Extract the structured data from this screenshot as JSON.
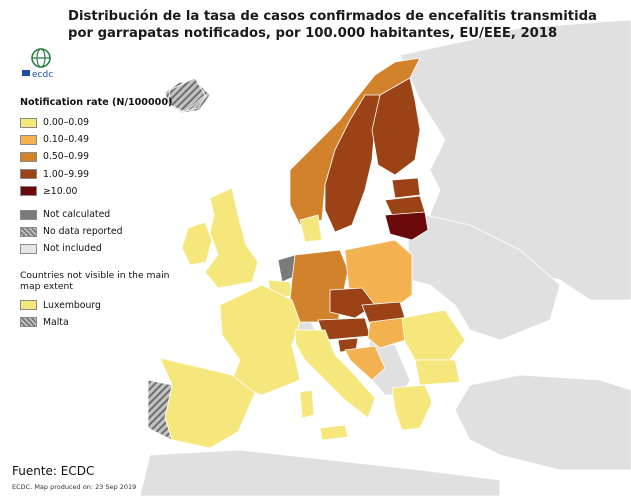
{
  "title": "Distribución de la tasa de casos confirmados de encefalitis transmitida por garrapatas notificados, por 100.000 habitantes, EU/EEE, 2018",
  "logo": {
    "text": "ecdc",
    "icon": "ecdc-globe-icon"
  },
  "legend": {
    "title": "Notification rate (N/100000)",
    "classes": [
      {
        "label": "0.00–0.09",
        "color": "#f5e77c"
      },
      {
        "label": "0.10–0.49",
        "color": "#f3b24f"
      },
      {
        "label": "0.50–0.99",
        "color": "#d1822b"
      },
      {
        "label": "1.00–9.99",
        "color": "#9b4216"
      },
      {
        "label": "≥10.00",
        "color": "#6a0a0a"
      }
    ],
    "other": [
      {
        "label": "Not calculated",
        "color": "#7a7a7a"
      },
      {
        "label": "No data reported",
        "color": "hatch"
      },
      {
        "label": "Not included",
        "color": "#e6e6e6"
      }
    ],
    "note": "Countries not visible in the main map extent",
    "small_countries": [
      {
        "label": "Luxembourg",
        "color": "#f5e77c"
      },
      {
        "label": "Malta",
        "color": "hatch"
      }
    ]
  },
  "source": "Fuente: ECDC",
  "produced": "ECDC. Map produced on: 23 Sep 2019",
  "colors": {
    "background_land": "#e0e0e0",
    "border": "#ffffff",
    "sea": "#ffffff"
  }
}
